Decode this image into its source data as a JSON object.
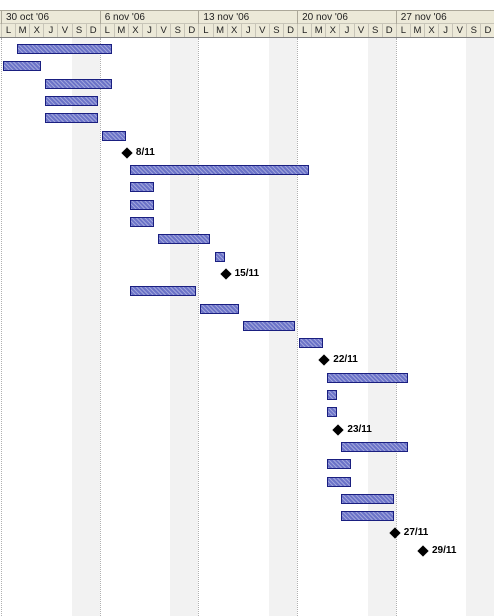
{
  "timeline": {
    "weeks": [
      "30 oct '06",
      "6 nov '06",
      "13 nov '06",
      "20 nov '06",
      "27 nov '06"
    ],
    "day_letters": [
      "L",
      "M",
      "X",
      "J",
      "V",
      "S",
      "D"
    ]
  },
  "tasks": [
    {
      "type": "bar",
      "start": "2006-10-31",
      "end": "2006-11-06"
    },
    {
      "type": "bar",
      "start": "2006-10-30",
      "end": "2006-11-01"
    },
    {
      "type": "bar",
      "start": "2006-11-02",
      "end": "2006-11-06"
    },
    {
      "type": "bar",
      "start": "2006-11-02",
      "end": "2006-11-05"
    },
    {
      "type": "bar",
      "start": "2006-11-02",
      "end": "2006-11-05"
    },
    {
      "type": "bar",
      "start": "2006-11-06",
      "end": "2006-11-07"
    },
    {
      "type": "milestone",
      "date": "2006-11-08",
      "label": "8/11"
    },
    {
      "type": "bar",
      "start": "2006-11-08",
      "end": "2006-11-20"
    },
    {
      "type": "bar",
      "start": "2006-11-08",
      "end": "2006-11-09"
    },
    {
      "type": "bar",
      "start": "2006-11-08",
      "end": "2006-11-09"
    },
    {
      "type": "bar",
      "start": "2006-11-08",
      "end": "2006-11-09"
    },
    {
      "type": "bar",
      "start": "2006-11-10",
      "end": "2006-11-13"
    },
    {
      "type": "bar",
      "start": "2006-11-14",
      "end": "2006-11-14"
    },
    {
      "type": "milestone",
      "date": "2006-11-15",
      "label": "15/11"
    },
    {
      "type": "bar",
      "start": "2006-11-08",
      "end": "2006-11-12"
    },
    {
      "type": "bar",
      "start": "2006-11-13",
      "end": "2006-11-15"
    },
    {
      "type": "bar",
      "start": "2006-11-16",
      "end": "2006-11-19"
    },
    {
      "type": "bar",
      "start": "2006-11-20",
      "end": "2006-11-21"
    },
    {
      "type": "milestone",
      "date": "2006-11-22",
      "label": "22/11"
    },
    {
      "type": "bar",
      "start": "2006-11-22",
      "end": "2006-11-27"
    },
    {
      "type": "bar",
      "start": "2006-11-22",
      "end": "2006-11-22"
    },
    {
      "type": "bar",
      "start": "2006-11-22",
      "end": "2006-11-22"
    },
    {
      "type": "milestone",
      "date": "2006-11-23",
      "label": "23/11"
    },
    {
      "type": "bar",
      "start": "2006-11-23",
      "end": "2006-11-27"
    },
    {
      "type": "bar",
      "start": "2006-11-22",
      "end": "2006-11-23"
    },
    {
      "type": "bar",
      "start": "2006-11-22",
      "end": "2006-11-23"
    },
    {
      "type": "bar",
      "start": "2006-11-23",
      "end": "2006-11-26"
    },
    {
      "type": "bar",
      "start": "2006-11-23",
      "end": "2006-11-26"
    },
    {
      "type": "milestone",
      "date": "2006-11-27",
      "label": "27/11"
    },
    {
      "type": "milestone",
      "date": "2006-11-29",
      "label": "29/11"
    }
  ],
  "colors": {
    "bar_fill": "#6b73c8",
    "bar_border": "#1a1f80",
    "milestone": "#000000",
    "header_bg": "#ece9d8",
    "weekend_bg": "#f2f2f2"
  }
}
